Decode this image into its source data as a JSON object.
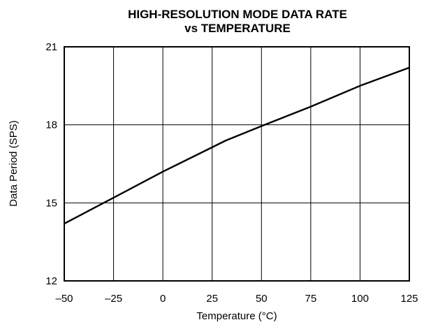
{
  "chart_data": {
    "type": "line",
    "title": [
      "HIGH-RESOLUTION MODE DATA RATE",
      "vs TEMPERATURE"
    ],
    "xlabel": "Temperature (°C)",
    "ylabel": "Data Period (SPS)",
    "xlim": [
      -50,
      125
    ],
    "ylim": [
      12,
      21
    ],
    "xticks": [
      -50,
      -25,
      0,
      25,
      50,
      75,
      100,
      125
    ],
    "yticks": [
      12,
      15,
      18,
      21
    ],
    "xtick_labels": [
      "–50",
      "–25",
      "0",
      "25",
      "50",
      "75",
      "100",
      "125"
    ],
    "ytick_labels": [
      "12",
      "15",
      "18",
      "21"
    ],
    "grid": true,
    "series": [
      {
        "x": [
          -50,
          -25,
          0,
          32,
          50,
          75,
          100,
          125
        ],
        "y": [
          14.2,
          15.2,
          16.2,
          17.4,
          17.95,
          18.7,
          19.5,
          20.2
        ]
      }
    ]
  }
}
